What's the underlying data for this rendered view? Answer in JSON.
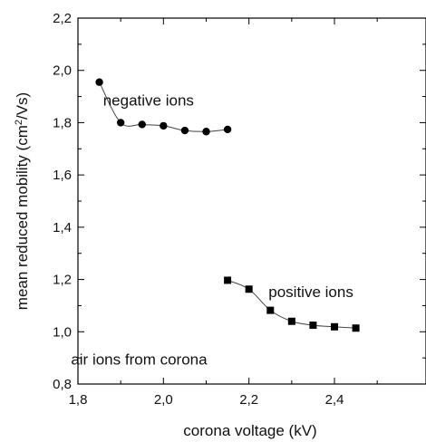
{
  "chart_data": {
    "type": "scatter",
    "xlabel": "corona voltage  (kV)",
    "ylabel_main": "mean reduced mobility  (cm",
    "ylabel_sup": "2",
    "ylabel_tail": "/Vs)",
    "xlim": [
      1.8,
      2.5
    ],
    "ylim": [
      0.8,
      2.2
    ],
    "x_ticks": [
      {
        "v": 1.8,
        "label": "1,8"
      },
      {
        "v": 2.0,
        "label": "2,0"
      },
      {
        "v": 2.2,
        "label": "2,2"
      },
      {
        "v": 2.4,
        "label": "2,4"
      }
    ],
    "y_ticks": [
      {
        "v": 0.8,
        "label": "0,8"
      },
      {
        "v": 1.0,
        "label": "1,0"
      },
      {
        "v": 1.2,
        "label": "1,2"
      },
      {
        "v": 1.4,
        "label": "1,4"
      },
      {
        "v": 1.6,
        "label": "1,6"
      },
      {
        "v": 1.8,
        "label": "1,8"
      },
      {
        "v": 2.0,
        "label": "2,0"
      },
      {
        "v": 2.2,
        "label": "2,2"
      }
    ],
    "grid": false,
    "series": [
      {
        "name": "negative ions",
        "marker": "circle",
        "color": "#000000",
        "x": [
          1.85,
          1.9,
          1.95,
          2.0,
          2.05,
          2.1,
          2.15
        ],
        "y": [
          1.955,
          1.8,
          1.793,
          1.788,
          1.77,
          1.766,
          1.774
        ]
      },
      {
        "name": "positive ions",
        "marker": "square",
        "color": "#000000",
        "x": [
          2.15,
          2.2,
          2.25,
          2.3,
          2.35,
          2.4,
          2.45
        ],
        "y": [
          1.197,
          1.163,
          1.082,
          1.04,
          1.025,
          1.019,
          1.014
        ]
      }
    ],
    "annotations": [
      {
        "text": "negative ions",
        "x": 1.965,
        "y": 1.865
      },
      {
        "text": "positive ions",
        "x": 2.345,
        "y": 1.133
      },
      {
        "text": "air ions from corona",
        "x": 1.943,
        "y": 0.875
      }
    ]
  }
}
